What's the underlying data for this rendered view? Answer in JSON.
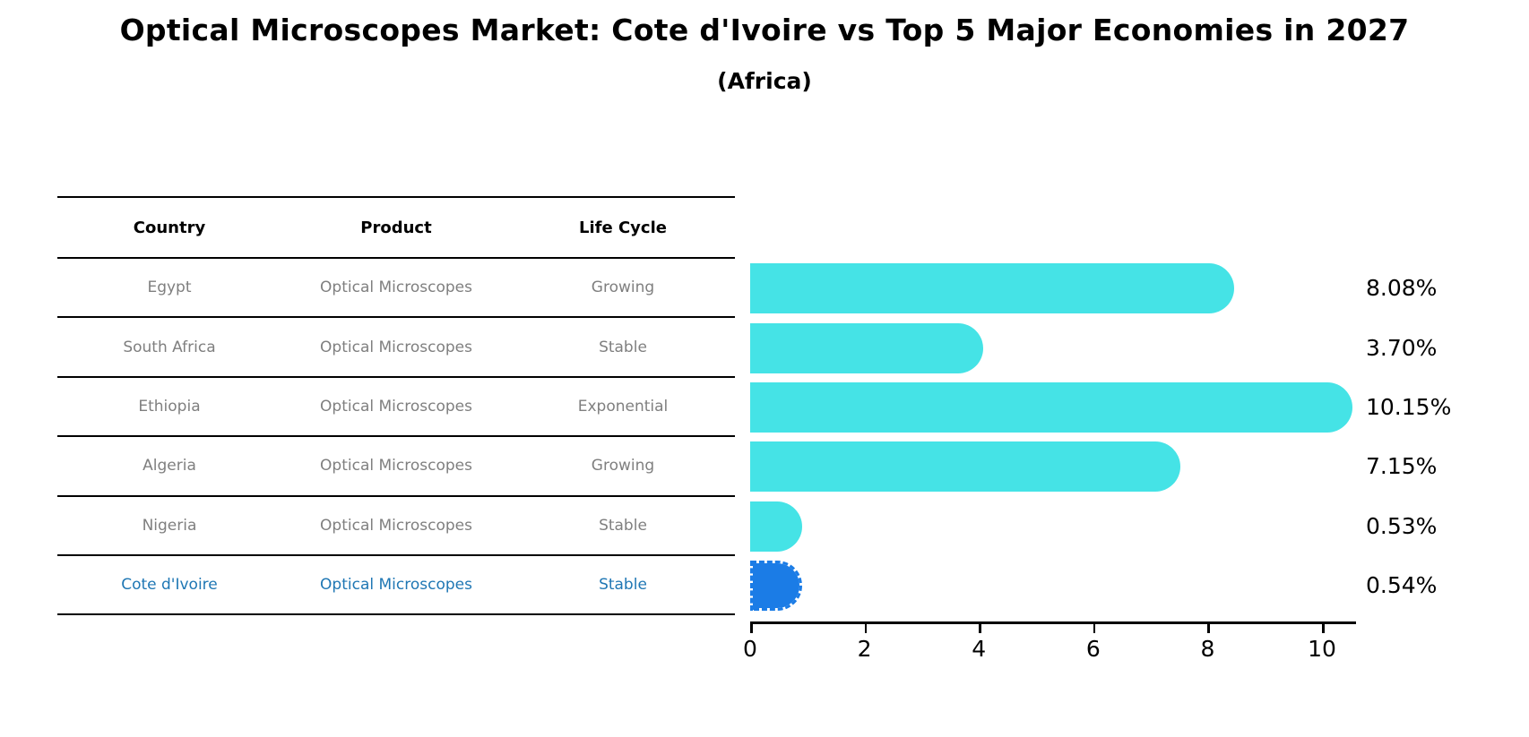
{
  "header": {
    "title": "Optical Microscopes Market: Cote d'Ivoire vs Top 5 Major Economies in 2027",
    "subtitle": "(Africa)"
  },
  "table": {
    "columns": [
      "Country",
      "Product",
      "Life Cycle"
    ],
    "rows": [
      {
        "country": "Egypt",
        "product": "Optical Microscopes",
        "life_cycle": "Growing",
        "highlight": false
      },
      {
        "country": "South Africa",
        "product": "Optical Microscopes",
        "life_cycle": "Stable",
        "highlight": false
      },
      {
        "country": "Ethiopia",
        "product": "Optical Microscopes",
        "life_cycle": "Exponential",
        "highlight": false
      },
      {
        "country": "Algeria",
        "product": "Optical Microscopes",
        "life_cycle": "Growing",
        "highlight": false
      },
      {
        "country": "Nigeria",
        "product": "Optical Microscopes",
        "life_cycle": "Stable",
        "highlight": false
      },
      {
        "country": "Cote d'Ivoire",
        "product": "Optical Microscopes",
        "life_cycle": "Stable",
        "highlight": true
      }
    ]
  },
  "chart_data": {
    "type": "bar",
    "orientation": "horizontal",
    "title": "Optical Microscopes Market: Cote d'Ivoire vs Top 5 Major Economies in 2027",
    "subtitle": "(Africa)",
    "categories": [
      "Egypt",
      "South Africa",
      "Ethiopia",
      "Algeria",
      "Nigeria",
      "Cote d'Ivoire"
    ],
    "values": [
      8.08,
      3.7,
      10.15,
      7.15,
      0.53,
      0.54
    ],
    "value_labels": [
      "8.08%",
      "3.70%",
      "10.15%",
      "7.15%",
      "0.53%",
      "0.54%"
    ],
    "highlight_index": 5,
    "xticks": [
      0,
      2,
      4,
      6,
      8,
      10
    ],
    "xlim": [
      0,
      10.6
    ],
    "grid": false,
    "legend": false,
    "xlabel": "",
    "ylabel": ""
  },
  "colors": {
    "bar_cyan": "#45E3E6",
    "bar_blue": "#1B7CE6",
    "highlight_text": "#1F77B4",
    "row_text": "#7F7F7F",
    "axis_line": "#000000"
  }
}
